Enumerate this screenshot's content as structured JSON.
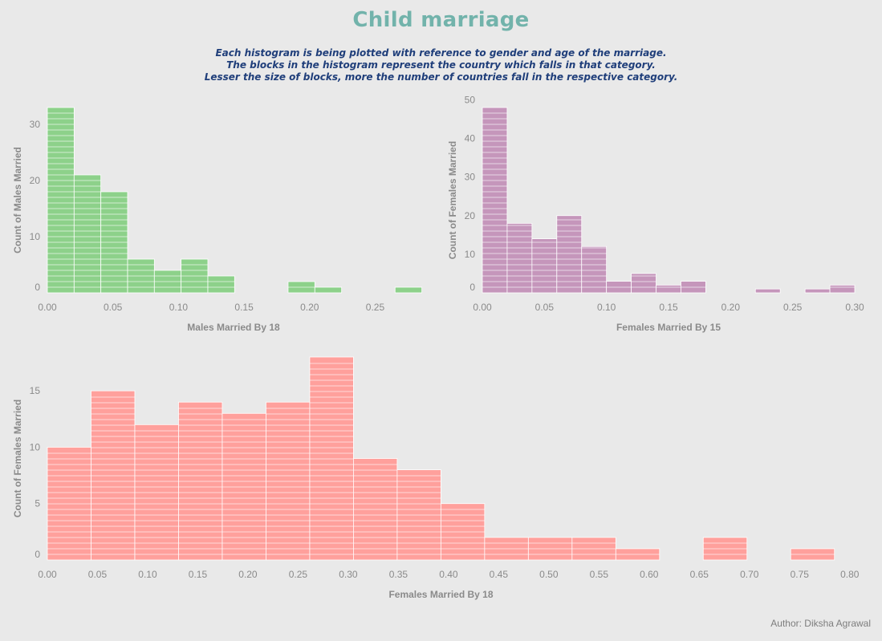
{
  "title": "Child marriage",
  "subtitle": [
    "Each histogram is being plotted with reference to gender and age of the marriage.",
    "The blocks in the histogram represent the country which falls in that category.",
    "Lesser the size of blocks, more the number of countries fall in the respective category."
  ],
  "author": "Author: Diksha Agrawal",
  "chart_data": [
    {
      "type": "bar",
      "xlabel": "Males Married By 18",
      "ylabel": "Count of Males Married",
      "color": "#8dd18a",
      "bin_width": 0.0204,
      "xlim": [
        0,
        0.284
      ],
      "ylim": [
        0,
        33
      ],
      "xticks": [
        "0.00",
        "0.05",
        "0.10",
        "0.15",
        "0.20",
        "0.25"
      ],
      "xtick_values": [
        0,
        0.05,
        0.1,
        0.15,
        0.2,
        0.25
      ],
      "yticks": [
        "0",
        "10",
        "20",
        "30"
      ],
      "ytick_values": [
        0,
        10,
        20,
        30
      ],
      "bins": [
        {
          "start": 0.0,
          "count": 33
        },
        {
          "start": 0.0204,
          "count": 21
        },
        {
          "start": 0.0408,
          "count": 18
        },
        {
          "start": 0.0612,
          "count": 6
        },
        {
          "start": 0.0816,
          "count": 4
        },
        {
          "start": 0.102,
          "count": 6
        },
        {
          "start": 0.1224,
          "count": 3
        },
        {
          "start": 0.1836,
          "count": 2
        },
        {
          "start": 0.204,
          "count": 1
        },
        {
          "start": 0.2652,
          "count": 1
        }
      ]
    },
    {
      "type": "bar",
      "xlabel": "Females Married By 15",
      "ylabel": "Count of Females Married",
      "color": "#c596bb",
      "bin_width": 0.02,
      "xlim": [
        0,
        0.3
      ],
      "ylim": [
        0,
        48
      ],
      "xticks": [
        "0.00",
        "0.05",
        "0.10",
        "0.15",
        "0.20",
        "0.25",
        "0.30"
      ],
      "xtick_values": [
        0,
        0.05,
        0.1,
        0.15,
        0.2,
        0.25,
        0.3
      ],
      "yticks": [
        "0",
        "10",
        "20",
        "30",
        "40",
        "50"
      ],
      "ytick_values": [
        0,
        10,
        20,
        30,
        40,
        50
      ],
      "bins": [
        {
          "start": 0.0,
          "count": 48
        },
        {
          "start": 0.02,
          "count": 18
        },
        {
          "start": 0.04,
          "count": 14
        },
        {
          "start": 0.06,
          "count": 20
        },
        {
          "start": 0.08,
          "count": 12
        },
        {
          "start": 0.1,
          "count": 3
        },
        {
          "start": 0.12,
          "count": 5
        },
        {
          "start": 0.14,
          "count": 2
        },
        {
          "start": 0.16,
          "count": 3
        },
        {
          "start": 0.22,
          "count": 1
        },
        {
          "start": 0.26,
          "count": 1
        },
        {
          "start": 0.28,
          "count": 2
        }
      ]
    },
    {
      "type": "bar",
      "xlabel": "Females Married By 18",
      "ylabel": "Count of Females Married",
      "color": "#ffa09c",
      "bin_width": 0.0436,
      "xlim": [
        0,
        0.785
      ],
      "ylim": [
        0,
        18
      ],
      "xticks": [
        "0.00",
        "0.05",
        "0.10",
        "0.15",
        "0.20",
        "0.25",
        "0.30",
        "0.35",
        "0.40",
        "0.45",
        "0.50",
        "0.55",
        "0.60",
        "0.65",
        "0.70",
        "0.75",
        "0.80"
      ],
      "xtick_values": [
        0,
        0.05,
        0.1,
        0.15,
        0.2,
        0.25,
        0.3,
        0.35,
        0.4,
        0.45,
        0.5,
        0.55,
        0.6,
        0.65,
        0.7,
        0.75,
        0.8
      ],
      "yticks": [
        "0",
        "5",
        "10",
        "15"
      ],
      "ytick_values": [
        0,
        5,
        10,
        15
      ],
      "bins": [
        {
          "start": 0.0,
          "count": 10
        },
        {
          "start": 0.0436,
          "count": 15
        },
        {
          "start": 0.0872,
          "count": 12
        },
        {
          "start": 0.1308,
          "count": 14
        },
        {
          "start": 0.1744,
          "count": 13
        },
        {
          "start": 0.218,
          "count": 14
        },
        {
          "start": 0.2616,
          "count": 18
        },
        {
          "start": 0.3052,
          "count": 9
        },
        {
          "start": 0.3488,
          "count": 8
        },
        {
          "start": 0.3924,
          "count": 5
        },
        {
          "start": 0.436,
          "count": 2
        },
        {
          "start": 0.4796,
          "count": 2
        },
        {
          "start": 0.5232,
          "count": 2
        },
        {
          "start": 0.5668,
          "count": 1
        },
        {
          "start": 0.654,
          "count": 2
        },
        {
          "start": 0.7412,
          "count": 1
        }
      ]
    }
  ]
}
